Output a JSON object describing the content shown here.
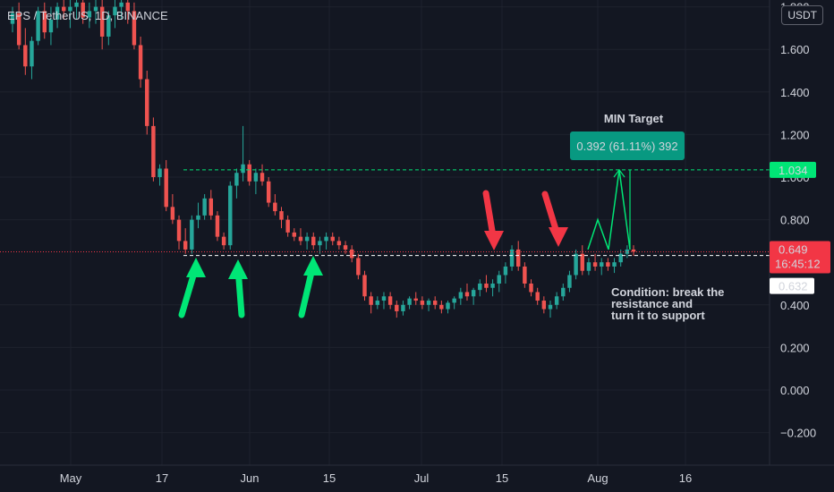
{
  "symbol": {
    "text": "EPS / TetherUS, 1D, BINANCE"
  },
  "currency_button": {
    "label": "USDT"
  },
  "price_axis": {
    "ticks": [
      "1.800",
      "1.600",
      "1.400",
      "1.200",
      "1.000",
      "0.800",
      "0.400",
      "0.200",
      "0.000",
      "−0.200"
    ],
    "tick_values": [
      1.8,
      1.6,
      1.4,
      1.2,
      1.0,
      0.8,
      0.4,
      0.2,
      0.0,
      -0.2
    ]
  },
  "time_axis": {
    "labels": [
      "May",
      "17",
      "Jun",
      "15",
      "Jul",
      "15",
      "Aug",
      "16"
    ]
  },
  "badges": {
    "target": {
      "value": "1.034",
      "color": "#00e676"
    },
    "last": {
      "value": "0.649",
      "countdown": "16:45:12",
      "color": "#f23645"
    },
    "support": {
      "value": "0.632",
      "color": "#ffffff"
    }
  },
  "annotations": {
    "min_target_label": "MIN Target",
    "measure_box": "0.392 (61.11%) 392",
    "condition_lines": [
      "Condition: break the",
      "resistance and",
      "turn it to support"
    ]
  },
  "colors": {
    "up": "#26a69a",
    "down": "#ef5350",
    "background": "#131722",
    "green_arrow": "#00e676",
    "red_arrow": "#f23645",
    "measure_box": "#089981"
  },
  "chart_data": {
    "type": "candlestick",
    "title": "EPS / TetherUS, 1D, BINANCE",
    "yunit": "USDT",
    "ylim": [
      -0.25,
      1.85
    ],
    "levels": {
      "resistance": 1.034,
      "support": 0.632,
      "last": 0.649
    },
    "candles": [
      [
        1.72,
        1.8,
        1.68,
        1.77
      ],
      [
        1.77,
        1.82,
        1.6,
        1.62
      ],
      [
        1.62,
        1.7,
        1.48,
        1.52
      ],
      [
        1.52,
        1.66,
        1.46,
        1.64
      ],
      [
        1.64,
        1.8,
        1.62,
        1.78
      ],
      [
        1.78,
        1.82,
        1.65,
        1.68
      ],
      [
        1.68,
        1.8,
        1.62,
        1.74
      ],
      [
        1.74,
        1.82,
        1.7,
        1.8
      ],
      [
        1.8,
        1.85,
        1.74,
        1.78
      ],
      [
        1.78,
        1.84,
        1.7,
        1.8
      ],
      [
        1.8,
        1.86,
        1.74,
        1.82
      ],
      [
        1.82,
        1.86,
        1.72,
        1.75
      ],
      [
        1.75,
        1.82,
        1.7,
        1.78
      ],
      [
        1.78,
        1.84,
        1.72,
        1.8
      ],
      [
        1.8,
        1.85,
        1.6,
        1.66
      ],
      [
        1.66,
        1.78,
        1.62,
        1.76
      ],
      [
        1.76,
        1.84,
        1.7,
        1.8
      ],
      [
        1.8,
        1.86,
        1.74,
        1.82
      ],
      [
        1.82,
        1.86,
        1.72,
        1.78
      ],
      [
        1.78,
        1.82,
        1.6,
        1.62
      ],
      [
        1.62,
        1.66,
        1.42,
        1.46
      ],
      [
        1.46,
        1.5,
        1.2,
        1.24
      ],
      [
        1.24,
        1.28,
        0.98,
        1.0
      ],
      [
        1.0,
        1.06,
        0.96,
        1.04
      ],
      [
        1.04,
        1.08,
        0.84,
        0.86
      ],
      [
        0.86,
        0.92,
        0.78,
        0.8
      ],
      [
        0.8,
        0.82,
        0.66,
        0.7
      ],
      [
        0.7,
        0.76,
        0.64,
        0.66
      ],
      [
        0.66,
        0.82,
        0.64,
        0.8
      ],
      [
        0.8,
        0.88,
        0.76,
        0.82
      ],
      [
        0.82,
        0.92,
        0.8,
        0.9
      ],
      [
        0.9,
        0.94,
        0.8,
        0.82
      ],
      [
        0.82,
        0.84,
        0.7,
        0.72
      ],
      [
        0.72,
        0.74,
        0.66,
        0.68
      ],
      [
        0.68,
        0.98,
        0.66,
        0.96
      ],
      [
        0.96,
        1.04,
        0.9,
        1.02
      ],
      [
        1.02,
        1.24,
        0.98,
        1.06
      ],
      [
        1.06,
        1.08,
        0.96,
        0.98
      ],
      [
        0.98,
        1.04,
        0.92,
        1.02
      ],
      [
        1.02,
        1.06,
        0.96,
        0.98
      ],
      [
        0.98,
        1.0,
        0.86,
        0.88
      ],
      [
        0.88,
        0.92,
        0.82,
        0.84
      ],
      [
        0.84,
        0.86,
        0.76,
        0.8
      ],
      [
        0.8,
        0.82,
        0.72,
        0.74
      ],
      [
        0.74,
        0.76,
        0.7,
        0.72
      ],
      [
        0.72,
        0.76,
        0.68,
        0.7
      ],
      [
        0.7,
        0.74,
        0.66,
        0.72
      ],
      [
        0.72,
        0.74,
        0.66,
        0.68
      ],
      [
        0.68,
        0.72,
        0.64,
        0.7
      ],
      [
        0.7,
        0.74,
        0.66,
        0.72
      ],
      [
        0.72,
        0.74,
        0.68,
        0.7
      ],
      [
        0.7,
        0.72,
        0.66,
        0.68
      ],
      [
        0.68,
        0.7,
        0.64,
        0.66
      ],
      [
        0.66,
        0.68,
        0.6,
        0.62
      ],
      [
        0.62,
        0.64,
        0.52,
        0.54
      ],
      [
        0.54,
        0.56,
        0.42,
        0.44
      ],
      [
        0.44,
        0.46,
        0.36,
        0.4
      ],
      [
        0.4,
        0.44,
        0.38,
        0.42
      ],
      [
        0.42,
        0.46,
        0.38,
        0.44
      ],
      [
        0.44,
        0.46,
        0.38,
        0.4
      ],
      [
        0.4,
        0.42,
        0.34,
        0.37
      ],
      [
        0.37,
        0.42,
        0.35,
        0.4
      ],
      [
        0.4,
        0.44,
        0.38,
        0.43
      ],
      [
        0.43,
        0.46,
        0.4,
        0.42
      ],
      [
        0.42,
        0.44,
        0.38,
        0.4
      ],
      [
        0.4,
        0.43,
        0.37,
        0.42
      ],
      [
        0.42,
        0.44,
        0.38,
        0.4
      ],
      [
        0.4,
        0.42,
        0.36,
        0.38
      ],
      [
        0.38,
        0.42,
        0.36,
        0.41
      ],
      [
        0.41,
        0.44,
        0.38,
        0.43
      ],
      [
        0.43,
        0.48,
        0.4,
        0.46
      ],
      [
        0.46,
        0.5,
        0.42,
        0.44
      ],
      [
        0.44,
        0.48,
        0.4,
        0.47
      ],
      [
        0.47,
        0.52,
        0.44,
        0.5
      ],
      [
        0.5,
        0.54,
        0.46,
        0.48
      ],
      [
        0.48,
        0.52,
        0.44,
        0.5
      ],
      [
        0.5,
        0.56,
        0.46,
        0.54
      ],
      [
        0.54,
        0.6,
        0.5,
        0.58
      ],
      [
        0.58,
        0.68,
        0.56,
        0.66
      ],
      [
        0.66,
        0.7,
        0.56,
        0.58
      ],
      [
        0.58,
        0.6,
        0.48,
        0.5
      ],
      [
        0.5,
        0.52,
        0.44,
        0.46
      ],
      [
        0.46,
        0.48,
        0.4,
        0.42
      ],
      [
        0.42,
        0.44,
        0.36,
        0.38
      ],
      [
        0.38,
        0.42,
        0.34,
        0.4
      ],
      [
        0.4,
        0.46,
        0.38,
        0.44
      ],
      [
        0.44,
        0.5,
        0.42,
        0.48
      ],
      [
        0.48,
        0.56,
        0.46,
        0.54
      ],
      [
        0.54,
        0.66,
        0.52,
        0.64
      ],
      [
        0.64,
        0.68,
        0.54,
        0.56
      ],
      [
        0.56,
        0.62,
        0.54,
        0.6
      ],
      [
        0.6,
        0.64,
        0.56,
        0.58
      ],
      [
        0.58,
        0.62,
        0.54,
        0.6
      ],
      [
        0.6,
        0.62,
        0.56,
        0.58
      ],
      [
        0.58,
        0.62,
        0.55,
        0.6
      ],
      [
        0.6,
        0.66,
        0.58,
        0.64
      ],
      [
        0.64,
        0.68,
        0.62,
        0.66
      ],
      [
        0.66,
        0.68,
        0.63,
        0.65
      ]
    ]
  }
}
